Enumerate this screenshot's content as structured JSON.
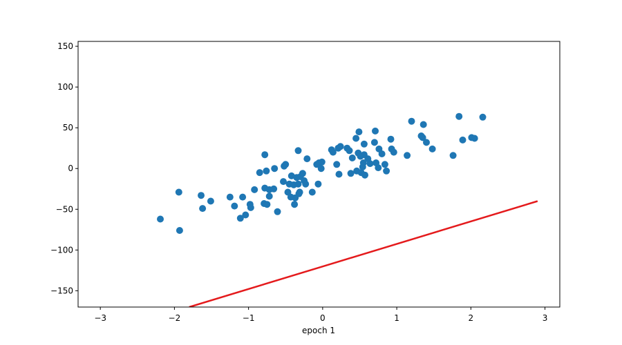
{
  "chart_data": {
    "type": "scatter",
    "title": "",
    "xlabel": "epoch 1",
    "ylabel": "",
    "xlim": [
      -3.3,
      3.2
    ],
    "ylim": [
      -170,
      156
    ],
    "xticks": [
      -3,
      -2,
      -1,
      0,
      1,
      2,
      3
    ],
    "yticks": [
      -150,
      -100,
      -50,
      0,
      50,
      100,
      150
    ],
    "grid": false,
    "legend": "none",
    "colors": {
      "points": "#1f77b4",
      "line": "#e41a1c",
      "axes": "#000000"
    },
    "points": [
      [
        -2.19,
        -62
      ],
      [
        -1.94,
        -29
      ],
      [
        -1.93,
        -76
      ],
      [
        -1.64,
        -33
      ],
      [
        -1.62,
        -49
      ],
      [
        -1.51,
        -40
      ],
      [
        -1.25,
        -35
      ],
      [
        -1.19,
        -46
      ],
      [
        -1.11,
        -61
      ],
      [
        -1.08,
        -35
      ],
      [
        -1.04,
        -57
      ],
      [
        -0.98,
        -44
      ],
      [
        -0.97,
        -48
      ],
      [
        -0.92,
        -26
      ],
      [
        -0.85,
        -5
      ],
      [
        -0.79,
        -43
      ],
      [
        -0.78,
        -24
      ],
      [
        -0.78,
        17
      ],
      [
        -0.76,
        -3
      ],
      [
        -0.75,
        -44
      ],
      [
        -0.72,
        -34
      ],
      [
        -0.72,
        -26
      ],
      [
        -0.66,
        -25
      ],
      [
        -0.65,
        0
      ],
      [
        -0.61,
        -53
      ],
      [
        -0.53,
        -16
      ],
      [
        -0.52,
        3
      ],
      [
        -0.5,
        5
      ],
      [
        -0.47,
        -29
      ],
      [
        -0.45,
        -19
      ],
      [
        -0.43,
        -35
      ],
      [
        -0.42,
        -9
      ],
      [
        -0.39,
        -20
      ],
      [
        -0.38,
        -44
      ],
      [
        -0.37,
        -36
      ],
      [
        -0.35,
        -11
      ],
      [
        -0.33,
        22
      ],
      [
        -0.33,
        -19
      ],
      [
        -0.32,
        -31
      ],
      [
        -0.31,
        -29
      ],
      [
        -0.3,
        -10
      ],
      [
        -0.27,
        -6
      ],
      [
        -0.25,
        -15
      ],
      [
        -0.23,
        -19
      ],
      [
        -0.21,
        12
      ],
      [
        -0.14,
        -29
      ],
      [
        -0.08,
        5
      ],
      [
        -0.06,
        -19
      ],
      [
        -0.05,
        7
      ],
      [
        -0.02,
        0
      ],
      [
        -0.01,
        8
      ],
      [
        0.12,
        23
      ],
      [
        0.14,
        20
      ],
      [
        0.19,
        5
      ],
      [
        0.21,
        25
      ],
      [
        0.22,
        -7
      ],
      [
        0.24,
        27
      ],
      [
        0.33,
        25
      ],
      [
        0.36,
        22
      ],
      [
        0.38,
        -6
      ],
      [
        0.4,
        13
      ],
      [
        0.45,
        37
      ],
      [
        0.46,
        -3
      ],
      [
        0.48,
        19
      ],
      [
        0.49,
        45
      ],
      [
        0.51,
        15
      ],
      [
        0.52,
        -5
      ],
      [
        0.54,
        2
      ],
      [
        0.55,
        7
      ],
      [
        0.56,
        17
      ],
      [
        0.56,
        30
      ],
      [
        0.57,
        -8
      ],
      [
        0.61,
        12
      ],
      [
        0.64,
        6
      ],
      [
        0.7,
        32
      ],
      [
        0.71,
        46
      ],
      [
        0.72,
        7
      ],
      [
        0.75,
        1
      ],
      [
        0.76,
        24
      ],
      [
        0.8,
        18
      ],
      [
        0.84,
        5
      ],
      [
        0.86,
        -3
      ],
      [
        0.92,
        36
      ],
      [
        0.93,
        24
      ],
      [
        0.96,
        20
      ],
      [
        1.14,
        16
      ],
      [
        1.2,
        58
      ],
      [
        1.33,
        40
      ],
      [
        1.35,
        38
      ],
      [
        1.36,
        54
      ],
      [
        1.4,
        32
      ],
      [
        1.48,
        24
      ],
      [
        1.76,
        16
      ],
      [
        1.84,
        64
      ],
      [
        1.89,
        35
      ],
      [
        2.01,
        38
      ],
      [
        2.05,
        37
      ],
      [
        2.16,
        63
      ]
    ],
    "line": {
      "x": [
        -1.8,
        2.9
      ],
      "y": [
        -170,
        -40
      ]
    }
  }
}
